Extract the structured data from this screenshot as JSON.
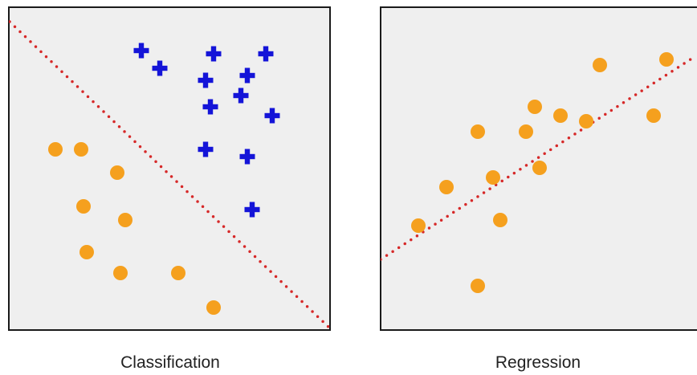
{
  "panels": {
    "classification": {
      "caption": "Classification",
      "class_a_points": [
        [
          176,
          63
        ],
        [
          199,
          85
        ],
        [
          266,
          67
        ],
        [
          331,
          67
        ],
        [
          256,
          100
        ],
        [
          308,
          94
        ],
        [
          262,
          133
        ],
        [
          300,
          119
        ],
        [
          339,
          144
        ],
        [
          256,
          186
        ],
        [
          308,
          195
        ],
        [
          314,
          261
        ]
      ],
      "class_b_points": [
        [
          69,
          186
        ],
        [
          101,
          186
        ],
        [
          146,
          215
        ],
        [
          104,
          257
        ],
        [
          156,
          274
        ],
        [
          108,
          314
        ],
        [
          150,
          340
        ],
        [
          222,
          340
        ],
        [
          266,
          383
        ]
      ],
      "decision_boundary": [
        [
          12,
          27
        ],
        [
          410,
          408
        ]
      ]
    },
    "regression": {
      "caption": "Regression",
      "points": [
        [
          747,
          81
        ],
        [
          830,
          74
        ],
        [
          666,
          133
        ],
        [
          698,
          144
        ],
        [
          730,
          151
        ],
        [
          814,
          144
        ],
        [
          595,
          164
        ],
        [
          655,
          164
        ],
        [
          614,
          221
        ],
        [
          672,
          209
        ],
        [
          556,
          233
        ],
        [
          623,
          274
        ],
        [
          521,
          281
        ],
        [
          595,
          356
        ]
      ],
      "fit_line": [
        [
          474,
          323
        ],
        [
          866,
          70
        ]
      ]
    }
  },
  "colors": {
    "panel_bg": "#efefef",
    "panel_border": "#1a1a1a",
    "cross_marker": "#1414d8",
    "circle_marker": "#f5a01e",
    "dotted_line": "#d62828"
  }
}
